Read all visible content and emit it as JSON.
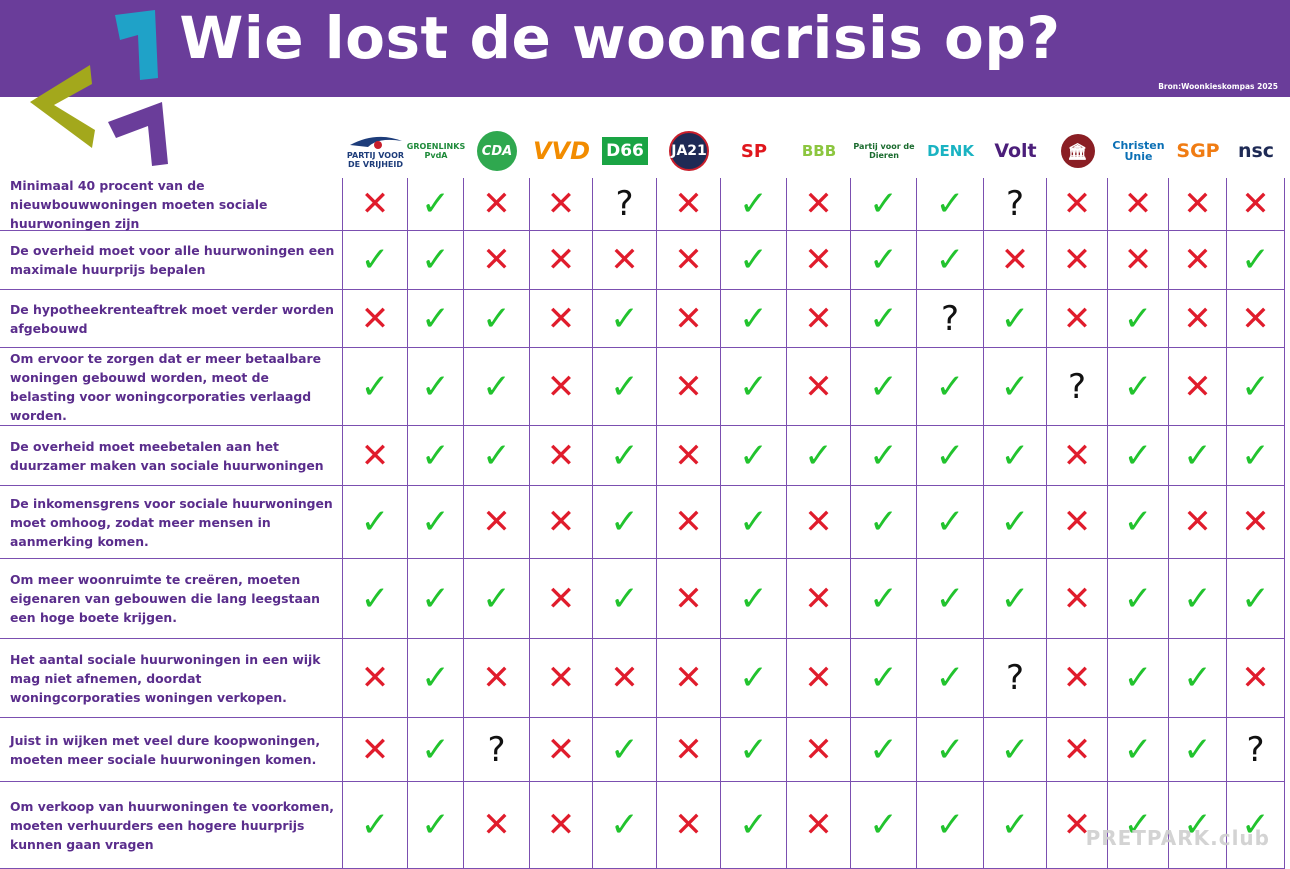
{
  "title": "Wie lost de wooncrisis op?",
  "source": "Bron:Woonkieskompas 2025",
  "colors": {
    "banner": "#6a3d9a",
    "yes": "#22c32e",
    "no": "#e01c2c",
    "question_text": "#5a2d8c"
  },
  "parties": [
    {
      "name": "PARTIJ VOOR DE VRIJHEID",
      "icon": "pvv-logo"
    },
    {
      "name": "GROENLINKS PvdA",
      "icon": "groenlinks-pvda-logo"
    },
    {
      "name": "CDA",
      "icon": "cda-logo"
    },
    {
      "name": "VVD",
      "icon": "vvd-logo"
    },
    {
      "name": "D66",
      "icon": "d66-logo"
    },
    {
      "name": "JA21",
      "icon": "ja21-logo"
    },
    {
      "name": "SP",
      "icon": "sp-logo"
    },
    {
      "name": "BBB",
      "icon": "bbb-logo"
    },
    {
      "name": "Partij voor de Dieren",
      "icon": "pvdd-logo"
    },
    {
      "name": "DENK",
      "icon": "denk-logo"
    },
    {
      "name": "Volt",
      "icon": "volt-logo"
    },
    {
      "name": "FvD",
      "icon": "fvd-logo"
    },
    {
      "name": "Christen Unie",
      "icon": "christenunie-logo"
    },
    {
      "name": "SGP",
      "icon": "sgp-logo"
    },
    {
      "name": "nsc",
      "icon": "nsc-logo"
    }
  ],
  "statements": [
    {
      "text": "Minimaal 40 procent van de nieuwbouwwoningen moeten sociale huurwoningen zijn",
      "answers": [
        "no",
        "yes",
        "no",
        "no",
        "unknown",
        "no",
        "yes",
        "no",
        "yes",
        "yes",
        "unknown",
        "no",
        "no",
        "no",
        "no"
      ]
    },
    {
      "text": "De overheid moet voor alle huurwoningen een maximale huurprijs bepalen",
      "answers": [
        "yes",
        "yes",
        "no",
        "no",
        "no",
        "no",
        "yes",
        "no",
        "yes",
        "yes",
        "no",
        "no",
        "no",
        "no",
        "yes"
      ]
    },
    {
      "text": "De hypotheekrenteaftrek moet verder worden afgebouwd",
      "answers": [
        "no",
        "yes",
        "yes",
        "no",
        "yes",
        "no",
        "yes",
        "no",
        "yes",
        "unknown",
        "yes",
        "no",
        "yes",
        "no",
        "no"
      ]
    },
    {
      "text": "Om ervoor te zorgen dat er meer betaalbare woningen gebouwd worden, meot de belasting voor woningcorporaties verlaagd worden.",
      "answers": [
        "yes",
        "yes",
        "yes",
        "no",
        "yes",
        "no",
        "yes",
        "no",
        "yes",
        "yes",
        "yes",
        "unknown",
        "yes",
        "no",
        "yes"
      ]
    },
    {
      "text": "De overheid moet meebetalen aan het duurzamer maken van sociale huurwoningen",
      "answers": [
        "no",
        "yes",
        "yes",
        "no",
        "yes",
        "no",
        "yes",
        "yes",
        "yes",
        "yes",
        "yes",
        "no",
        "yes",
        "yes",
        "yes"
      ]
    },
    {
      "text": "De inkomensgrens voor sociale huurwoningen moet omhoog, zodat meer mensen in aanmerking komen.",
      "answers": [
        "yes",
        "yes",
        "no",
        "no",
        "yes",
        "no",
        "yes",
        "no",
        "yes",
        "yes",
        "yes",
        "no",
        "yes",
        "no",
        "no"
      ]
    },
    {
      "text": "Om meer woonruimte te creëren, moeten eigenaren van gebouwen die lang leegstaan een hoge boete krijgen.",
      "answers": [
        "yes",
        "yes",
        "yes",
        "no",
        "yes",
        "no",
        "yes",
        "no",
        "yes",
        "yes",
        "yes",
        "no",
        "yes",
        "yes",
        "yes"
      ]
    },
    {
      "text": "Het aantal sociale huurwoningen in een wijk mag niet afnemen, doordat woningcorporaties woningen verkopen.",
      "answers": [
        "no",
        "yes",
        "no",
        "no",
        "no",
        "no",
        "yes",
        "no",
        "yes",
        "yes",
        "unknown",
        "no",
        "yes",
        "yes",
        "no"
      ]
    },
    {
      "text": "Juist in wijken met veel dure koopwoningen, moeten meer sociale huurwoningen komen.",
      "answers": [
        "no",
        "yes",
        "unknown",
        "no",
        "yes",
        "no",
        "yes",
        "no",
        "yes",
        "yes",
        "yes",
        "no",
        "yes",
        "yes",
        "unknown"
      ]
    },
    {
      "text": "Om verkoop van huurwoningen te voorkomen, moeten verhuurders een hogere huurprijs kunnen gaan vragen",
      "answers": [
        "yes",
        "yes",
        "no",
        "no",
        "yes",
        "no",
        "yes",
        "no",
        "yes",
        "yes",
        "yes",
        "no",
        "yes",
        "yes",
        "yes"
      ]
    }
  ],
  "symbols": {
    "yes": "✓",
    "no": "✕",
    "unknown": "?"
  },
  "watermark": "PRETPARK.club"
}
